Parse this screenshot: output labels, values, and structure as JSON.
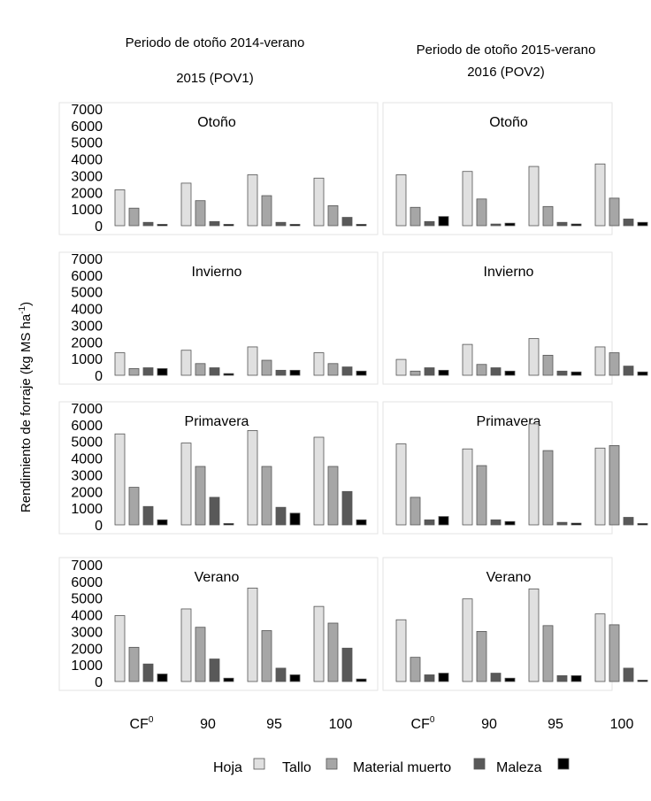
{
  "chart_data": {
    "type": "bar",
    "columns": [
      {
        "title_line1": "Periodo de otoño 2014-verano",
        "title_line2": "2015 (POV1)"
      },
      {
        "title_line1": "Periodo de otoño 2015-verano",
        "title_line2": "2016 (POV2)"
      }
    ],
    "ylabel": "Rendimiento de forraje (kg MS ha",
    "ylabel_sup": "-1",
    "ylabel_close": ")",
    "ylim": [
      0,
      7000
    ],
    "yticks": [
      "0",
      "1000",
      "2000",
      "3000",
      "4000",
      "5000",
      "6000",
      "7000"
    ],
    "categories": [
      {
        "base": "CF",
        "sup": "0"
      },
      {
        "base": "90",
        "sup": ""
      },
      {
        "base": "95",
        "sup": ""
      },
      {
        "base": "100",
        "sup": ""
      }
    ],
    "legend": [
      "Hoja",
      "Tallo",
      "Material muerto",
      "Maleza"
    ],
    "colors": [
      "#e0e0e0",
      "#a6a6a6",
      "#595959",
      "#000000"
    ],
    "panels": [
      {
        "season": "Otoño",
        "period": "POV1",
        "series": [
          {
            "name": "Hoja",
            "values": [
              2150,
              2550,
              3050,
              2850
            ]
          },
          {
            "name": "Tallo",
            "values": [
              1050,
              1500,
              1800,
              1200
            ]
          },
          {
            "name": "Material muerto",
            "values": [
              200,
              250,
              200,
              500
            ]
          },
          {
            "name": "Maleza",
            "values": [
              50,
              50,
              0,
              50
            ]
          }
        ]
      },
      {
        "season": "Otoño",
        "period": "POV2",
        "series": [
          {
            "name": "Hoja",
            "values": [
              3050,
              3250,
              3550,
              3700
            ]
          },
          {
            "name": "Tallo",
            "values": [
              1100,
              1600,
              1150,
              1650
            ]
          },
          {
            "name": "Material muerto",
            "values": [
              250,
              100,
              200,
              400
            ]
          },
          {
            "name": "Maleza",
            "values": [
              550,
              150,
              100,
              200
            ]
          }
        ]
      },
      {
        "season": "Invierno",
        "period": "POV1",
        "series": [
          {
            "name": "Hoja",
            "values": [
              1350,
              1500,
              1700,
              1350
            ]
          },
          {
            "name": "Tallo",
            "values": [
              400,
              700,
              900,
              700
            ]
          },
          {
            "name": "Material muerto",
            "values": [
              450,
              450,
              300,
              500
            ]
          },
          {
            "name": "Maleza",
            "values": [
              400,
              100,
              300,
              250
            ]
          }
        ]
      },
      {
        "season": "Invierno",
        "period": "POV2",
        "series": [
          {
            "name": "Hoja",
            "values": [
              950,
              1850,
              2200,
              1700
            ]
          },
          {
            "name": "Tallo",
            "values": [
              250,
              650,
              1200,
              1350
            ]
          },
          {
            "name": "Material muerto",
            "values": [
              450,
              450,
              250,
              550
            ]
          },
          {
            "name": "Maleza",
            "values": [
              300,
              250,
              200,
              200
            ]
          }
        ]
      },
      {
        "season": "Primavera",
        "period": "POV1",
        "series": [
          {
            "name": "Hoja",
            "values": [
              5450,
              4900,
              5650,
              5250
            ]
          },
          {
            "name": "Tallo",
            "values": [
              2250,
              3500,
              3500,
              3500
            ]
          },
          {
            "name": "Material muerto",
            "values": [
              1100,
              1650,
              1050,
              2000
            ]
          },
          {
            "name": "Maleza",
            "values": [
              300,
              50,
              700,
              300
            ]
          }
        ]
      },
      {
        "season": "Primavera",
        "period": "POV2",
        "series": [
          {
            "name": "Hoja",
            "values": [
              4850,
              4550,
              6050,
              4600
            ]
          },
          {
            "name": "Tallo",
            "values": [
              1650,
              3550,
              4450,
              4750
            ]
          },
          {
            "name": "Material muerto",
            "values": [
              300,
              300,
              150,
              450
            ]
          },
          {
            "name": "Maleza",
            "values": [
              500,
              200,
              100,
              50
            ]
          }
        ]
      },
      {
        "season": "Verano",
        "period": "POV1",
        "series": [
          {
            "name": "Hoja",
            "values": [
              3950,
              4350,
              5600,
              4500
            ]
          },
          {
            "name": "Tallo",
            "values": [
              2050,
              3250,
              3050,
              3500
            ]
          },
          {
            "name": "Material muerto",
            "values": [
              1050,
              1350,
              800,
              2000
            ]
          },
          {
            "name": "Maleza",
            "values": [
              450,
              200,
              400,
              150
            ]
          }
        ]
      },
      {
        "season": "Verano",
        "period": "POV2",
        "series": [
          {
            "name": "Hoja",
            "values": [
              3700,
              4950,
              5550,
              4050
            ]
          },
          {
            "name": "Tallo",
            "values": [
              1450,
              3000,
              3350,
              3400
            ]
          },
          {
            "name": "Material muerto",
            "values": [
              400,
              500,
              350,
              800
            ]
          },
          {
            "name": "Maleza",
            "values": [
              500,
              200,
              350,
              50
            ]
          }
        ]
      }
    ]
  }
}
